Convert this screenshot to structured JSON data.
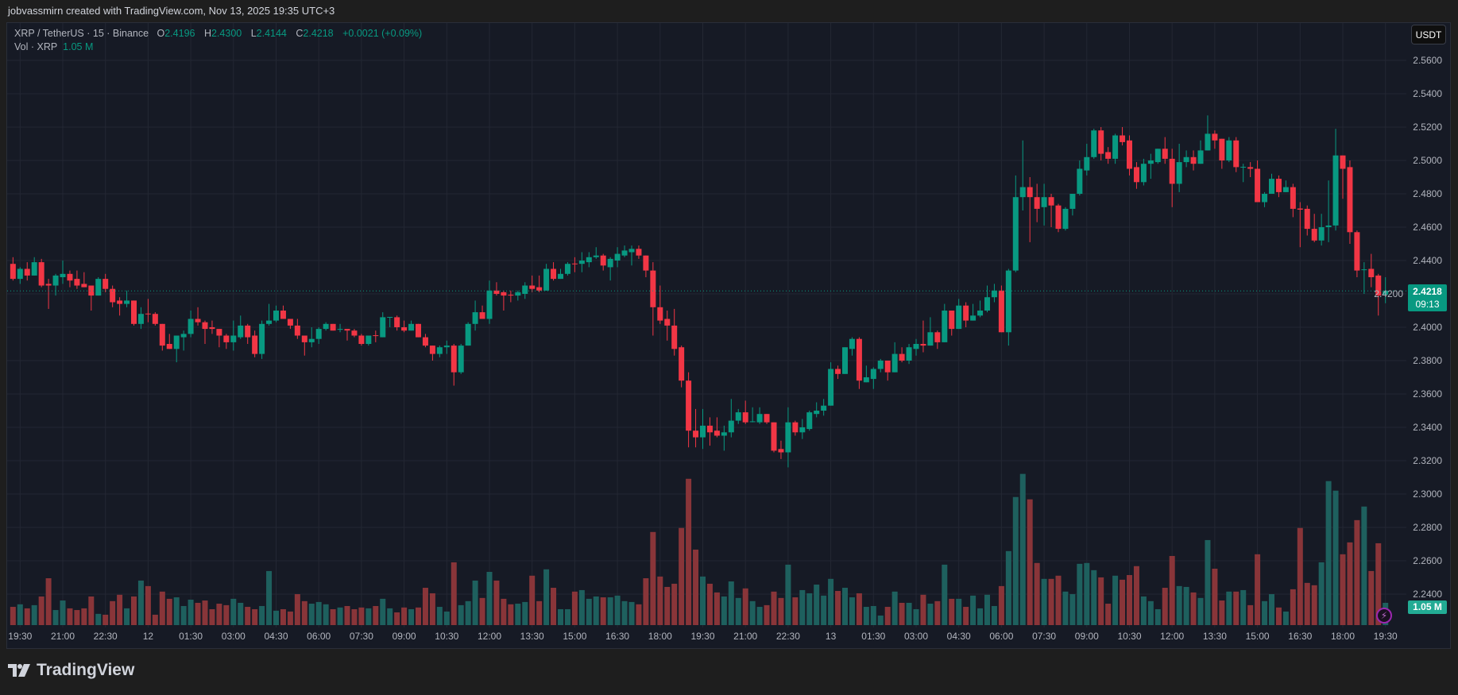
{
  "header": {
    "attribution": "jobvassmirn created with TradingView.com, Nov 13, 2025 19:35 UTC+3"
  },
  "legend": {
    "symbol": "XRP / TetherUS · 15 · Binance",
    "o_label": "O",
    "o": "2.4196",
    "h_label": "H",
    "h": "2.4300",
    "l_label": "L",
    "l": "2.4144",
    "c_label": "C",
    "c": "2.4218",
    "change": "+0.0021 (+0.09%)",
    "vol_label": "Vol · XRP",
    "vol": "1.05 M"
  },
  "currency_button": "USDT",
  "price_badge": {
    "price": "2.4218",
    "countdown": "09:13"
  },
  "volume_badge": "1.05 M",
  "footer": {
    "brand": "TradingView"
  },
  "colors": {
    "up": "#089981",
    "down": "#f23645",
    "up_volume": "#1e605e",
    "down_volume": "#893539",
    "background": "#161a25",
    "grid": "#232733"
  },
  "icons": {
    "alert": "lightning-icon",
    "logo": "tradingview-logo"
  },
  "chart_data": {
    "type": "candlestick",
    "symbol": "XRP/USDT",
    "interval": "15",
    "ylim": [
      2.24,
      2.57
    ],
    "price_ticks": [
      "2.5600",
      "2.5400",
      "2.5200",
      "2.5000",
      "2.4800",
      "2.4600",
      "2.4400",
      "2.4200",
      "2.4000",
      "2.3800",
      "2.3600",
      "2.3400",
      "2.3200",
      "2.3000",
      "2.2800",
      "2.2600",
      "2.2400"
    ],
    "time_ticks": [
      "19:30",
      "21:00",
      "22:30",
      "12",
      "01:30",
      "03:00",
      "04:30",
      "06:00",
      "07:30",
      "09:00",
      "10:30",
      "12:00",
      "13:30",
      "15:00",
      "16:30",
      "18:00",
      "19:30",
      "21:00",
      "22:30",
      "13",
      "01:30",
      "03:00",
      "04:30",
      "06:00",
      "07:30",
      "09:00",
      "10:30",
      "12:00",
      "13:30",
      "15:00",
      "16:30",
      "18:00",
      "19:30"
    ],
    "last_price": 2.4218,
    "ohlc": [
      [
        2.438,
        2.442,
        2.428,
        2.429
      ],
      [
        2.429,
        2.436,
        2.426,
        2.435
      ],
      [
        2.435,
        2.439,
        2.428,
        2.431
      ],
      [
        2.431,
        2.442,
        2.431,
        2.439
      ],
      [
        2.439,
        2.441,
        2.424,
        2.425
      ],
      [
        2.426,
        2.429,
        2.411,
        2.425
      ],
      [
        2.425,
        2.432,
        2.419,
        2.431
      ],
      [
        2.43,
        2.44,
        2.426,
        2.432
      ],
      [
        2.432,
        2.434,
        2.424,
        2.428
      ],
      [
        2.429,
        2.434,
        2.423,
        2.425
      ],
      [
        2.426,
        2.433,
        2.424,
        2.424
      ],
      [
        2.425,
        2.425,
        2.41,
        2.419
      ],
      [
        2.419,
        2.43,
        2.419,
        2.429
      ],
      [
        2.429,
        2.432,
        2.421,
        2.423
      ],
      [
        2.423,
        2.425,
        2.412,
        2.415
      ],
      [
        2.416,
        2.418,
        2.407,
        2.414
      ],
      [
        2.414,
        2.422,
        2.412,
        2.416
      ],
      [
        2.416,
        2.416,
        2.401,
        2.402
      ],
      [
        2.402,
        2.412,
        2.399,
        2.408
      ],
      [
        2.4082,
        2.417,
        2.403,
        2.4079
      ],
      [
        2.408,
        2.409,
        2.401,
        2.402
      ],
      [
        2.402,
        2.402,
        2.386,
        2.389
      ],
      [
        2.39,
        2.396,
        2.387,
        2.387
      ],
      [
        2.387,
        2.395,
        2.379,
        2.395
      ],
      [
        2.394,
        2.398,
        2.386,
        2.396
      ],
      [
        2.396,
        2.41,
        2.394,
        2.405
      ],
      [
        2.405,
        2.412,
        2.401,
        2.403
      ],
      [
        2.403,
        2.404,
        2.39,
        2.399
      ],
      [
        2.4,
        2.404,
        2.396,
        2.399
      ],
      [
        2.399,
        2.399,
        2.388,
        2.395
      ],
      [
        2.395,
        2.396,
        2.387,
        2.391
      ],
      [
        2.391,
        2.404,
        2.386,
        2.395
      ],
      [
        2.394,
        2.407,
        2.393,
        2.401
      ],
      [
        2.401,
        2.402,
        2.39,
        2.394
      ],
      [
        2.395,
        2.398,
        2.382,
        2.384
      ],
      [
        2.384,
        2.404,
        2.381,
        2.402
      ],
      [
        2.402,
        2.414,
        2.401,
        2.404
      ],
      [
        2.404,
        2.413,
        2.403,
        2.41
      ],
      [
        2.41,
        2.413,
        2.405,
        2.405
      ],
      [
        2.405,
        2.405,
        2.399,
        2.401
      ],
      [
        2.401,
        2.405,
        2.393,
        2.395
      ],
      [
        2.395,
        2.395,
        2.383,
        2.391
      ],
      [
        2.391,
        2.4,
        2.388,
        2.393
      ],
      [
        2.393,
        2.4,
        2.39,
        2.399
      ],
      [
        2.399,
        2.403,
        2.398,
        2.402
      ],
      [
        2.402,
        2.402,
        2.398,
        2.398
      ],
      [
        2.3985,
        2.402,
        2.397,
        2.399
      ],
      [
        2.399,
        2.399,
        2.392,
        2.398
      ],
      [
        2.398,
        2.399,
        2.394,
        2.395
      ],
      [
        2.395,
        2.396,
        2.389,
        2.39
      ],
      [
        2.39,
        2.395,
        2.389,
        2.395
      ],
      [
        2.3952,
        2.398,
        2.391,
        2.3948
      ],
      [
        2.394,
        2.409,
        2.394,
        2.406
      ],
      [
        2.4058,
        2.406,
        2.4,
        2.4062
      ],
      [
        2.406,
        2.407,
        2.398,
        2.4
      ],
      [
        2.4,
        2.404,
        2.397,
        2.398
      ],
      [
        2.398,
        2.404,
        2.398,
        2.402
      ],
      [
        2.402,
        2.402,
        2.394,
        2.394
      ],
      [
        2.394,
        2.396,
        2.388,
        2.389
      ],
      [
        2.389,
        2.389,
        2.38,
        2.384
      ],
      [
        2.384,
        2.389,
        2.382,
        2.388
      ],
      [
        2.388,
        2.392,
        2.384,
        2.389
      ],
      [
        2.389,
        2.39,
        2.365,
        2.373
      ],
      [
        2.373,
        2.39,
        2.372,
        2.389
      ],
      [
        2.389,
        2.403,
        2.389,
        2.402
      ],
      [
        2.402,
        2.416,
        2.398,
        2.409
      ],
      [
        2.409,
        2.413,
        2.405,
        2.405
      ],
      [
        2.405,
        2.428,
        2.402,
        2.422
      ],
      [
        2.422,
        2.427,
        2.419,
        2.42
      ],
      [
        2.421,
        2.422,
        2.41,
        2.419
      ],
      [
        2.4195,
        2.422,
        2.415,
        2.419
      ],
      [
        2.419,
        2.422,
        2.416,
        2.421
      ],
      [
        2.42,
        2.427,
        2.417,
        2.425
      ],
      [
        2.425,
        2.431,
        2.421,
        2.423
      ],
      [
        2.424,
        2.431,
        2.421,
        2.422
      ],
      [
        2.422,
        2.438,
        2.422,
        2.435
      ],
      [
        2.435,
        2.439,
        2.428,
        2.429
      ],
      [
        2.429,
        2.435,
        2.429,
        2.432
      ],
      [
        2.432,
        2.439,
        2.431,
        2.438
      ],
      [
        2.4382,
        2.442,
        2.433,
        2.4378
      ],
      [
        2.438,
        2.445,
        2.433,
        2.44
      ],
      [
        2.439,
        2.445,
        2.436,
        2.442
      ],
      [
        2.442,
        2.448,
        2.441,
        2.443
      ],
      [
        2.443,
        2.444,
        2.434,
        2.437
      ],
      [
        2.436,
        2.442,
        2.428,
        2.441
      ],
      [
        2.44,
        2.448,
        2.436,
        2.444
      ],
      [
        2.443,
        2.449,
        2.442,
        2.446
      ],
      [
        2.445,
        2.449,
        2.437,
        2.447
      ],
      [
        2.447,
        2.449,
        2.441,
        2.443
      ],
      [
        2.443,
        2.443,
        2.43,
        2.434
      ],
      [
        2.434,
        2.439,
        2.395,
        2.412
      ],
      [
        2.412,
        2.425,
        2.402,
        2.404
      ],
      [
        2.405,
        2.41,
        2.392,
        2.401
      ],
      [
        2.401,
        2.411,
        2.383,
        2.387
      ],
      [
        2.388,
        2.389,
        2.364,
        2.368
      ],
      [
        2.368,
        2.373,
        2.328,
        2.338
      ],
      [
        2.338,
        2.351,
        2.328,
        2.334
      ],
      [
        2.334,
        2.351,
        2.327,
        2.341
      ],
      [
        2.341,
        2.346,
        2.329,
        2.337
      ],
      [
        2.338,
        2.346,
        2.334,
        2.335
      ],
      [
        2.335,
        2.341,
        2.326,
        2.337
      ],
      [
        2.337,
        2.357,
        2.334,
        2.344
      ],
      [
        2.344,
        2.351,
        2.342,
        2.349
      ],
      [
        2.349,
        2.356,
        2.342,
        2.343
      ],
      [
        2.3432,
        2.352,
        2.343,
        2.3436
      ],
      [
        2.343,
        2.352,
        2.342,
        2.348
      ],
      [
        2.348,
        2.348,
        2.342,
        2.343
      ],
      [
        2.343,
        2.343,
        2.325,
        2.326
      ],
      [
        2.327,
        2.332,
        2.321,
        2.325
      ],
      [
        2.325,
        2.352,
        2.316,
        2.343
      ],
      [
        2.343,
        2.344,
        2.335,
        2.337
      ],
      [
        2.337,
        2.345,
        2.333,
        2.34
      ],
      [
        2.339,
        2.35,
        2.338,
        2.349
      ],
      [
        2.348,
        2.355,
        2.346,
        2.35
      ],
      [
        2.35,
        2.357,
        2.347,
        2.353
      ],
      [
        2.353,
        2.379,
        2.353,
        2.375
      ],
      [
        2.375,
        2.377,
        2.369,
        2.372
      ],
      [
        2.372,
        2.388,
        2.372,
        2.388
      ],
      [
        2.387,
        2.394,
        2.383,
        2.393
      ],
      [
        2.393,
        2.394,
        2.363,
        2.368
      ],
      [
        2.367,
        2.377,
        2.367,
        2.37
      ],
      [
        2.369,
        2.376,
        2.363,
        2.375
      ],
      [
        2.375,
        2.381,
        2.373,
        2.38
      ],
      [
        2.38,
        2.38,
        2.368,
        2.373
      ],
      [
        2.373,
        2.391,
        2.373,
        2.384
      ],
      [
        2.384,
        2.388,
        2.379,
        2.38
      ],
      [
        2.38,
        2.39,
        2.378,
        2.388
      ],
      [
        2.387,
        2.393,
        2.383,
        2.39
      ],
      [
        2.39,
        2.404,
        2.385,
        2.389
      ],
      [
        2.389,
        2.406,
        2.389,
        2.397
      ],
      [
        2.397,
        2.398,
        2.387,
        2.391
      ],
      [
        2.391,
        2.414,
        2.391,
        2.41
      ],
      [
        2.41,
        2.41,
        2.395,
        2.399
      ],
      [
        2.399,
        2.417,
        2.399,
        2.413
      ],
      [
        2.413,
        2.415,
        2.4,
        2.404
      ],
      [
        2.404,
        2.414,
        2.404,
        2.407
      ],
      [
        2.407,
        2.416,
        2.406,
        2.41
      ],
      [
        2.41,
        2.425,
        2.409,
        2.418
      ],
      [
        2.418,
        2.426,
        2.415,
        2.422
      ],
      [
        2.422,
        2.425,
        2.397,
        2.397
      ],
      [
        2.397,
        2.435,
        2.389,
        2.434
      ],
      [
        2.434,
        2.491,
        2.433,
        2.478
      ],
      [
        2.478,
        2.512,
        2.47,
        2.484
      ],
      [
        2.484,
        2.49,
        2.451,
        2.478
      ],
      [
        2.478,
        2.486,
        2.463,
        2.471
      ],
      [
        2.472,
        2.486,
        2.461,
        2.478
      ],
      [
        2.478,
        2.48,
        2.46,
        2.473
      ],
      [
        2.473,
        2.474,
        2.457,
        2.459
      ],
      [
        2.459,
        2.472,
        2.458,
        2.471
      ],
      [
        2.471,
        2.48,
        2.467,
        2.48
      ],
      [
        2.48,
        2.5,
        2.479,
        2.495
      ],
      [
        2.494,
        2.51,
        2.491,
        2.502
      ],
      [
        2.502,
        2.519,
        2.501,
        2.518
      ],
      [
        2.518,
        2.52,
        2.5,
        2.504
      ],
      [
        2.505,
        2.508,
        2.498,
        2.501
      ],
      [
        2.501,
        2.516,
        2.498,
        2.515
      ],
      [
        2.515,
        2.52,
        2.509,
        2.511
      ],
      [
        2.512,
        2.515,
        2.491,
        2.495
      ],
      [
        2.496,
        2.499,
        2.483,
        2.487
      ],
      [
        2.487,
        2.501,
        2.485,
        2.498
      ],
      [
        2.498,
        2.504,
        2.489,
        2.5
      ],
      [
        2.499,
        2.507,
        2.498,
        2.507
      ],
      [
        2.507,
        2.514,
        2.498,
        2.501
      ],
      [
        2.501,
        2.507,
        2.472,
        2.486
      ],
      [
        2.486,
        2.51,
        2.481,
        2.499
      ],
      [
        2.499,
        2.506,
        2.496,
        2.502
      ],
      [
        2.502,
        2.506,
        2.494,
        2.498
      ],
      [
        2.498,
        2.512,
        2.498,
        2.506
      ],
      [
        2.506,
        2.527,
        2.506,
        2.516
      ],
      [
        2.516,
        2.518,
        2.507,
        2.512
      ],
      [
        2.513,
        2.513,
        2.495,
        2.5
      ],
      [
        2.5,
        2.514,
        2.499,
        2.512
      ],
      [
        2.512,
        2.514,
        2.493,
        2.496
      ],
      [
        2.4958,
        2.498,
        2.487,
        2.4962
      ],
      [
        2.496,
        2.499,
        2.49,
        2.495
      ],
      [
        2.495,
        2.5,
        2.475,
        2.475
      ],
      [
        2.475,
        2.481,
        2.472,
        2.48
      ],
      [
        2.48,
        2.492,
        2.48,
        2.489
      ],
      [
        2.489,
        2.491,
        2.478,
        2.481
      ],
      [
        2.481,
        2.488,
        2.481,
        2.484
      ],
      [
        2.484,
        2.486,
        2.466,
        2.471
      ],
      [
        2.4712,
        2.475,
        2.448,
        2.4705
      ],
      [
        2.471,
        2.473,
        2.455,
        2.459
      ],
      [
        2.459,
        2.468,
        2.451,
        2.452
      ],
      [
        2.452,
        2.468,
        2.449,
        2.46
      ],
      [
        2.46,
        2.488,
        2.451,
        2.461
      ],
      [
        2.461,
        2.519,
        2.458,
        2.503
      ],
      [
        2.503,
        2.503,
        2.477,
        2.495
      ],
      [
        2.496,
        2.5,
        2.45,
        2.457
      ],
      [
        2.457,
        2.458,
        2.43,
        2.434
      ],
      [
        2.4343,
        2.439,
        2.42,
        2.4347
      ],
      [
        2.435,
        2.444,
        2.424,
        2.43
      ],
      [
        2.431,
        2.432,
        2.407,
        2.419
      ],
      [
        2.4196,
        2.43,
        2.4144,
        2.4218
      ]
    ],
    "volume_millions": [
      0.86,
      0.98,
      0.79,
      0.94,
      1.35,
      2.21,
      0.71,
      1.16,
      0.79,
      0.71,
      0.79,
      1.35,
      0.53,
      0.49,
      1.13,
      1.43,
      0.79,
      1.35,
      2.1,
      1.84,
      0.49,
      1.58,
      1.24,
      1.31,
      0.9,
      1.2,
      1.05,
      1.16,
      0.75,
      1.01,
      0.94,
      1.24,
      1.05,
      0.86,
      0.75,
      0.9,
      2.55,
      0.68,
      0.75,
      0.64,
      1.46,
      1.13,
      1.01,
      1.09,
      0.98,
      0.75,
      0.83,
      0.9,
      0.75,
      0.83,
      0.79,
      0.9,
      1.24,
      0.79,
      0.6,
      0.83,
      0.75,
      0.83,
      1.76,
      1.5,
      0.86,
      0.64,
      2.96,
      0.94,
      1.13,
      2.1,
      1.28,
      2.51,
      2.1,
      1.24,
      0.98,
      1.01,
      1.09,
      2.33,
      1.13,
      2.63,
      1.76,
      0.75,
      0.75,
      1.58,
      1.65,
      1.24,
      1.35,
      1.31,
      1.31,
      1.39,
      1.13,
      1.09,
      0.98,
      2.21,
      4.39,
      2.29,
      1.8,
      1.95,
      4.58,
      6.9,
      3.56,
      2.29,
      1.95,
      1.54,
      1.35,
      2.06,
      1.28,
      1.73,
      1.13,
      0.86,
      0.94,
      1.58,
      1.28,
      2.85,
      1.31,
      1.65,
      1.5,
      1.91,
      1.39,
      2.18,
      1.61,
      1.76,
      1.31,
      1.5,
      0.86,
      0.9,
      0.45,
      0.86,
      1.58,
      1.05,
      1.05,
      0.75,
      1.43,
      1.01,
      1.13,
      2.85,
      1.24,
      1.24,
      0.86,
      1.39,
      0.79,
      1.43,
      0.9,
      1.84,
      3.49,
      6.04,
      7.13,
      5.93,
      2.93,
      2.18,
      2.18,
      2.33,
      1.58,
      1.46,
      2.89,
      2.93,
      2.59,
      2.25,
      1.01,
      2.33,
      2.14,
      2.36,
      2.78,
      1.35,
      1.13,
      0.75,
      1.76,
      3.26,
      1.84,
      1.8,
      1.54,
      1.28,
      4.01,
      2.66,
      1.16,
      1.58,
      1.58,
      1.65,
      0.94,
      3.34,
      1.13,
      1.46,
      0.83,
      0.64,
      1.69,
      4.58,
      1.99,
      1.88,
      2.96,
      6.79,
      6.34,
      3.34,
      3.9,
      4.95,
      5.59,
      2.55,
      3.86,
      1.05
    ]
  }
}
